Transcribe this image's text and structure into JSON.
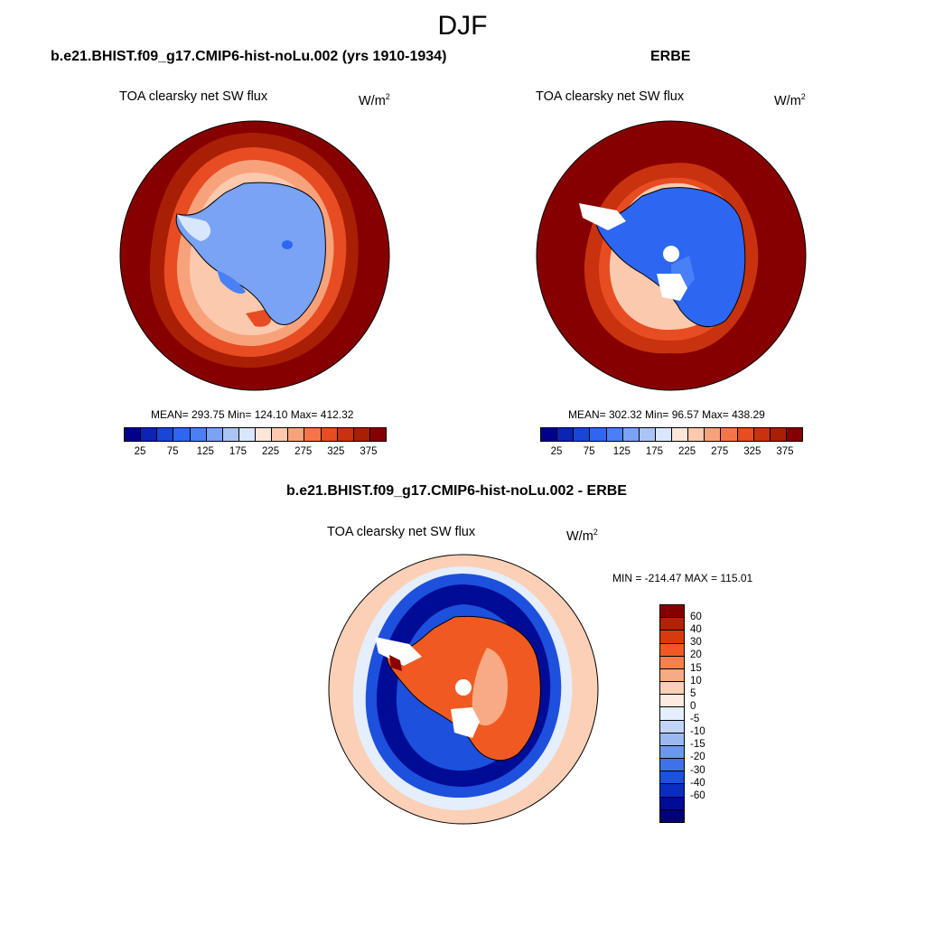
{
  "figure": {
    "season": "DJF"
  },
  "panels": {
    "model": {
      "title": "b.e21.BHIST.f09_g17.CMIP6-hist-noLu.002 (yrs 1910-1934)",
      "variable": "TOA clearsky net SW flux",
      "units_base": "W/m",
      "units_exp": "2",
      "stats": "MEAN= 293.75  Min= 124.10  Max= 412.32"
    },
    "obs": {
      "title": "ERBE",
      "variable": "TOA clearsky net SW flux",
      "units_base": "W/m",
      "units_exp": "2",
      "stats": "MEAN= 302.32  Min=  96.57  Max= 438.29"
    },
    "diff": {
      "title": "b.e21.BHIST.f09_g17.CMIP6-hist-noLu.002 - ERBE",
      "variable": "TOA clearsky net SW flux",
      "units_base": "W/m",
      "units_exp": "2",
      "stats": "MIN = -214.47 MAX = 115.01"
    }
  },
  "colorbars": {
    "abs": {
      "colors": [
        "#00008b",
        "#0a24b4",
        "#1846d8",
        "#2d66f0",
        "#4a80f5",
        "#7aa2f5",
        "#aac4f5",
        "#d8e7fb",
        "#fbe6d8",
        "#fbc9ad",
        "#f8a27c",
        "#f47648",
        "#e84c22",
        "#c8320e",
        "#a81f06",
        "#870000"
      ],
      "labels": [
        "25",
        "75",
        "125",
        "175",
        "225",
        "275",
        "325",
        "375"
      ]
    },
    "diff": {
      "colors": [
        "#870000",
        "#b02200",
        "#d83a0c",
        "#f05a22",
        "#f5804e",
        "#f8aa84",
        "#fbd0b6",
        "#fcebe0",
        "#e4eefc",
        "#c2d5f7",
        "#9bb8f2",
        "#6e96ee",
        "#3f72ea",
        "#1d50dc",
        "#0a2fc0",
        "#000c96",
        "#00007a"
      ],
      "labels": [
        "60",
        "40",
        "30",
        "20",
        "15",
        "10",
        "5",
        "0",
        "-5",
        "-10",
        "-15",
        "-20",
        "-30",
        "-40",
        "-60"
      ]
    }
  }
}
